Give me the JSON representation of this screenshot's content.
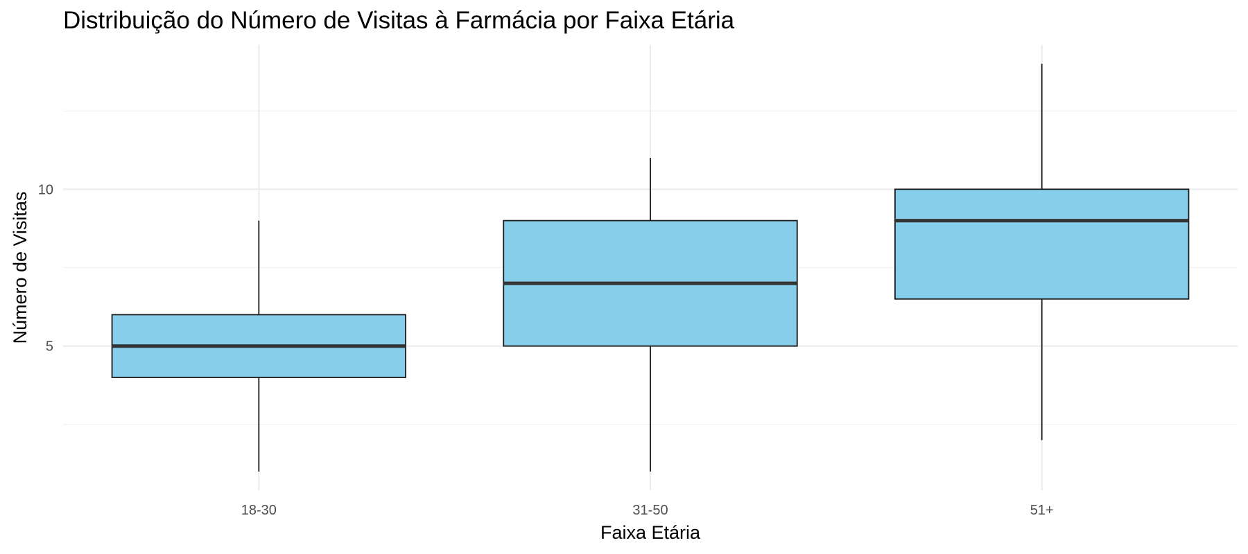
{
  "chart_data": {
    "type": "boxplot",
    "title": "Distribuição do Número de Visitas à Farmácia por Faixa Etária",
    "xlabel": "Faixa Etária",
    "ylabel": "Número de Visitas",
    "categories": [
      "18-30",
      "31-50",
      "51+"
    ],
    "boxes": [
      {
        "category": "18-30",
        "whisker_low": 1,
        "q1": 4,
        "median": 5,
        "q3": 6,
        "whisker_high": 9
      },
      {
        "category": "31-50",
        "whisker_low": 1,
        "q1": 5,
        "median": 7,
        "q3": 9,
        "whisker_high": 11
      },
      {
        "category": "51+",
        "whisker_low": 2,
        "q1": 6.5,
        "median": 9,
        "q3": 10,
        "whisker_high": 14
      }
    ],
    "y_ticks": [
      5,
      10
    ],
    "y_minor_ticks": [
      2.5,
      7.5,
      12.5
    ],
    "ylim": [
      0.4,
      14.6
    ],
    "grid": true,
    "colors": {
      "box_fill": "#87CEEB",
      "box_stroke": "#1a1a1a",
      "median": "#333333",
      "grid": "#ebebeb"
    }
  }
}
